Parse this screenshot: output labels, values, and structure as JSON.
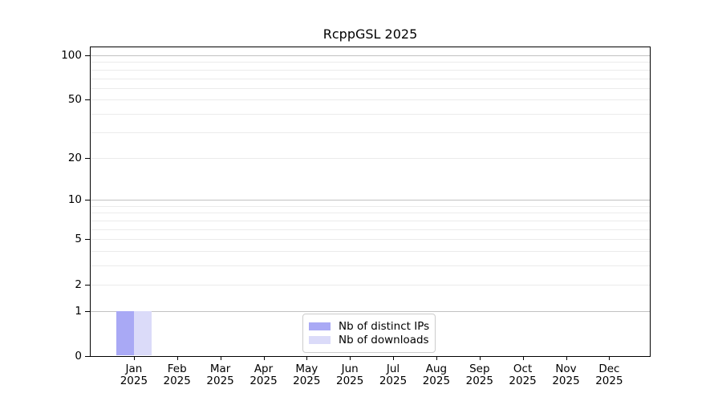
{
  "chart_data": {
    "type": "bar",
    "title": "RcppGSL 2025",
    "categories": [
      "Jan",
      "Feb",
      "Mar",
      "Apr",
      "May",
      "Jun",
      "Jul",
      "Aug",
      "Sep",
      "Oct",
      "Nov",
      "Dec"
    ],
    "year_label": "2025",
    "series": [
      {
        "name": "Nb of distinct IPs",
        "color": "#a9a9f5",
        "values": [
          1,
          0,
          0,
          0,
          0,
          0,
          0,
          0,
          0,
          0,
          0,
          0
        ]
      },
      {
        "name": "Nb of downloads",
        "color": "#dbdbf9",
        "values": [
          1,
          0,
          0,
          0,
          0,
          0,
          0,
          0,
          0,
          0,
          0,
          0
        ]
      }
    ],
    "xlabel": "",
    "ylabel": "",
    "yscale": "log1p",
    "ylim": [
      0,
      113
    ],
    "xlim": [
      -1,
      11.94
    ],
    "yticks": [
      0,
      1,
      2,
      5,
      10,
      20,
      50,
      100
    ],
    "grid": true,
    "gridlines_major": [
      1,
      10,
      100
    ],
    "gridlines_minor": [
      2,
      3,
      4,
      5,
      6,
      7,
      8,
      9,
      20,
      30,
      40,
      50,
      60,
      70,
      80,
      90
    ],
    "legend_position": "lower center"
  },
  "colors": {
    "background": "#ffffff",
    "axis": "#000000",
    "text": "#000000",
    "grid_major": "#c2c2c2",
    "grid_minor": "#ebebeb",
    "legend_border": "#cccccc"
  }
}
